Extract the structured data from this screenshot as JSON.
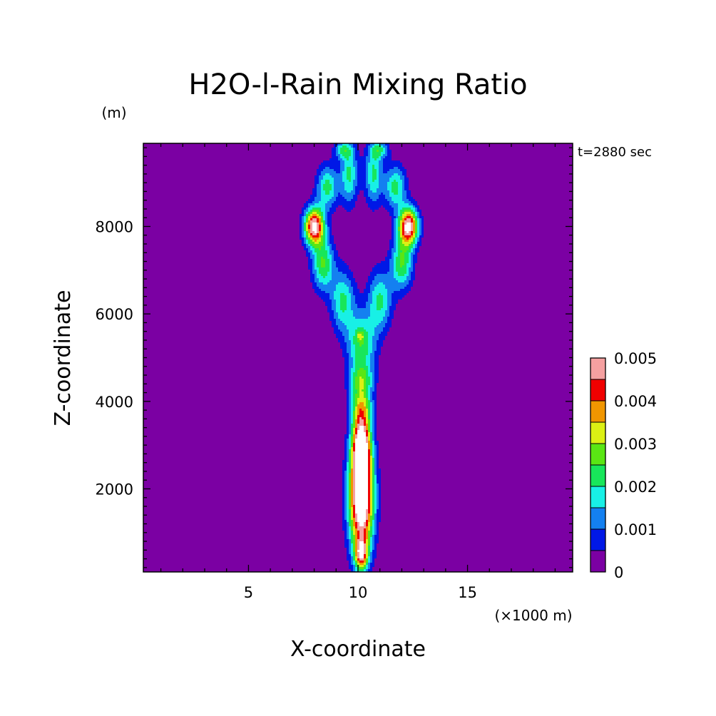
{
  "chart_data": {
    "type": "heatmap",
    "title": "H2O-l-Rain Mixing Ratio",
    "xlabel": "X-coordinate",
    "ylabel": "Z-coordinate",
    "x_unit": "(×1000 m)",
    "y_unit": "(m)",
    "annotation": "t=2880 sec",
    "xlim": [
      0.2,
      19.8
    ],
    "ylim": [
      100,
      9900
    ],
    "x_ticks": [
      5,
      10,
      15
    ],
    "x_tick_labels": [
      "5",
      "10",
      "15"
    ],
    "y_ticks": [
      2000,
      4000,
      6000,
      8000
    ],
    "y_tick_labels": [
      "2000",
      "4000",
      "6000",
      "8000"
    ],
    "colorbar": {
      "levels": [
        0,
        0.0005,
        0.001,
        0.0015,
        0.002,
        0.0025,
        0.003,
        0.0035,
        0.004,
        0.0045,
        0.005
      ],
      "colors": [
        "#7b00a3",
        "#0018e6",
        "#1480f0",
        "#18f0e6",
        "#18e65a",
        "#5ae614",
        "#dcf014",
        "#f09600",
        "#f00000",
        "#f5a0a0",
        "#ffffff"
      ],
      "tick_values": [
        0,
        0.001,
        0.002,
        0.003,
        0.004,
        0.005
      ],
      "tick_labels": [
        "0",
        "0.001",
        "0.002",
        "0.003",
        "0.004",
        "0.005"
      ]
    },
    "features": [
      {
        "region": "lower core",
        "x_center": 10.1,
        "z_range": [
          100,
          3800
        ],
        "max_value": 0.005
      },
      {
        "region": "upper left lobe",
        "x_center": 8.0,
        "z_range": [
          7600,
          8400
        ],
        "max_value": 0.0045
      },
      {
        "region": "upper right lobe",
        "x_center": 12.3,
        "z_range": [
          7700,
          8400
        ],
        "max_value": 0.0045
      }
    ]
  }
}
